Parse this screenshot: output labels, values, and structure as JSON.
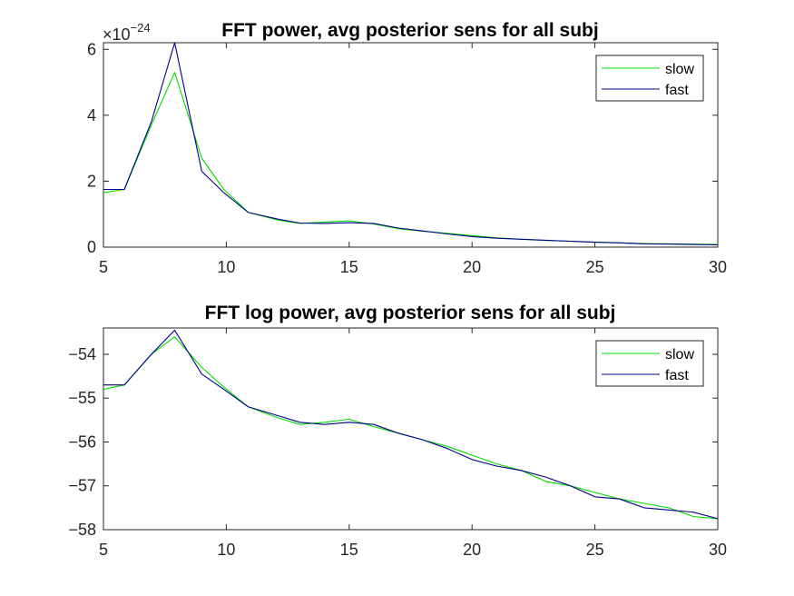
{
  "chart_data": [
    {
      "type": "line",
      "title": "FFT power, avg posterior sens for all subj",
      "xlabel": "",
      "ylabel": "",
      "exponent_label": {
        "base": "×10",
        "power": "−24"
      },
      "xlim": [
        5,
        30
      ],
      "ylim": [
        0,
        6.2
      ],
      "xticks": [
        5,
        10,
        15,
        20,
        25,
        30
      ],
      "yticks": [
        0,
        2,
        4,
        6
      ],
      "grid": false,
      "legend": {
        "position": "top-right",
        "entries": [
          "slow",
          "fast"
        ]
      },
      "x": [
        5,
        5.85,
        6.95,
        7.9,
        9.0,
        9.9,
        10.9,
        12.1,
        13.0,
        14.0,
        15.0,
        16.0,
        17.0,
        18.0,
        19.0,
        20.0,
        21.0,
        22.0,
        23.0,
        24.0,
        25.0,
        26.0,
        27.0,
        28.0,
        29.0,
        30.0
      ],
      "series": [
        {
          "name": "slow",
          "color": "#00dd00",
          "values": [
            1.65,
            1.75,
            3.7,
            5.3,
            2.7,
            1.75,
            1.05,
            0.82,
            0.72,
            0.76,
            0.8,
            0.7,
            0.56,
            0.48,
            0.42,
            0.35,
            0.28,
            0.24,
            0.2,
            0.18,
            0.15,
            0.13,
            0.11,
            0.1,
            0.09,
            0.08
          ]
        },
        {
          "name": "fast",
          "color": "#00008b",
          "values": [
            1.75,
            1.75,
            3.8,
            6.2,
            2.3,
            1.65,
            1.05,
            0.85,
            0.73,
            0.72,
            0.74,
            0.72,
            0.58,
            0.49,
            0.4,
            0.32,
            0.27,
            0.24,
            0.21,
            0.18,
            0.15,
            0.13,
            0.1,
            0.09,
            0.08,
            0.07
          ]
        }
      ]
    },
    {
      "type": "line",
      "title": "FFT log power, avg posterior sens for all subj",
      "xlabel": "",
      "ylabel": "",
      "xlim": [
        5,
        30
      ],
      "ylim": [
        -58,
        -53.4
      ],
      "xticks": [
        5,
        10,
        15,
        20,
        25,
        30
      ],
      "yticks": [
        -58,
        -57,
        -56,
        -55,
        -54
      ],
      "grid": false,
      "legend": {
        "position": "top-right",
        "entries": [
          "slow",
          "fast"
        ]
      },
      "x": [
        5,
        5.85,
        6.95,
        7.9,
        9.0,
        9.9,
        10.9,
        12.1,
        13.0,
        14.0,
        15.0,
        16.0,
        17.0,
        18.0,
        19.0,
        20.0,
        21.0,
        22.0,
        23.0,
        24.0,
        25.0,
        26.0,
        27.0,
        28.0,
        29.0,
        30.0
      ],
      "series": [
        {
          "name": "slow",
          "color": "#00dd00",
          "values": [
            -54.8,
            -54.7,
            -54.0,
            -53.6,
            -54.3,
            -54.75,
            -55.2,
            -55.45,
            -55.6,
            -55.55,
            -55.48,
            -55.65,
            -55.8,
            -55.95,
            -56.1,
            -56.3,
            -56.5,
            -56.65,
            -56.9,
            -57.0,
            -57.15,
            -57.3,
            -57.4,
            -57.5,
            -57.7,
            -57.75
          ]
        },
        {
          "name": "fast",
          "color": "#00008b",
          "values": [
            -54.7,
            -54.7,
            -54.0,
            -53.45,
            -54.45,
            -54.8,
            -55.2,
            -55.4,
            -55.55,
            -55.6,
            -55.55,
            -55.6,
            -55.8,
            -55.95,
            -56.15,
            -56.4,
            -56.55,
            -56.65,
            -56.8,
            -57.0,
            -57.25,
            -57.3,
            -57.5,
            -57.55,
            -57.6,
            -57.75
          ]
        }
      ]
    }
  ]
}
